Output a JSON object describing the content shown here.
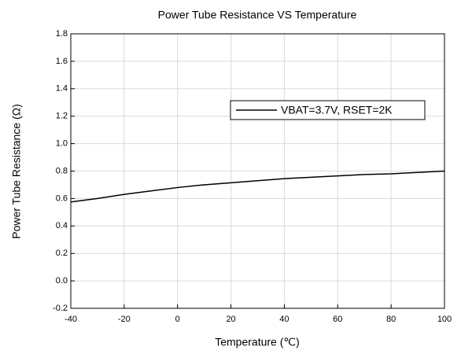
{
  "chart_data": {
    "type": "line",
    "title": "Power Tube Resistance VS Temperature",
    "x_label": "Temperature (℃)",
    "y_label": "Power Tube Resistance (Ω)",
    "x": [
      -40,
      -30,
      -20,
      -10,
      0,
      10,
      20,
      30,
      40,
      50,
      60,
      70,
      80,
      90,
      100
    ],
    "series": [
      {
        "name": "VBAT=3.7V, RSET=2K",
        "color": "#000000",
        "values": [
          0.575,
          0.6,
          0.63,
          0.655,
          0.68,
          0.7,
          0.715,
          0.73,
          0.745,
          0.755,
          0.765,
          0.775,
          0.78,
          0.79,
          0.8
        ]
      }
    ],
    "xlim": [
      -40,
      100
    ],
    "xticks": [
      -40,
      -20,
      0,
      20,
      40,
      60,
      80,
      100
    ],
    "ylim": [
      -0.2,
      1.8
    ],
    "yticks": [
      -0.2,
      {
        "value": 0,
        "label": "0.0"
      },
      0.2,
      0.4,
      0.6,
      0.8,
      {
        "value": 1,
        "label": "1.0"
      },
      1.2,
      1.4,
      1.6,
      1.8
    ],
    "grid": true,
    "legend": "upper right"
  }
}
